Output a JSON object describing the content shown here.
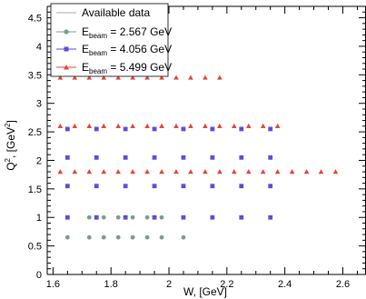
{
  "chart_data": {
    "type": "scatter",
    "xlabel": "W, [GeV]",
    "ylabel_main": "Q",
    "ylabel_sup": "2",
    "ylabel_rest": ", [GeV",
    "ylabel_unit_sup": "2",
    "ylabel_end": "]",
    "xlim": [
      1.58,
      2.68
    ],
    "ylim": [
      0,
      4.7
    ],
    "xticks": [
      "1.6",
      "1.8",
      "2",
      "2.2",
      "2.4",
      "2.6"
    ],
    "xtick_values": [
      1.6,
      1.8,
      2.0,
      2.2,
      2.4,
      2.6
    ],
    "yticks": [
      "0",
      "0.5",
      "1",
      "1.5",
      "2",
      "2.5",
      "3",
      "3.5",
      "4",
      "4.5"
    ],
    "ytick_values": [
      0,
      0.5,
      1,
      1.5,
      2,
      2.5,
      3,
      3.5,
      4,
      4.5
    ],
    "legend": {
      "position": "top-left",
      "available_label": "Available data",
      "entries": [
        {
          "prefix": "E",
          "sub": "beam",
          "suffix": " = 2.567 GeV"
        },
        {
          "prefix": "E",
          "sub": "beam",
          "suffix": " = 4.056 GeV"
        },
        {
          "prefix": "E",
          "sub": "beam",
          "suffix": " = 5.499 GeV"
        }
      ]
    },
    "series": [
      {
        "marker": "circle",
        "color": "#7a9e8c",
        "points": [
          [
            1.65,
            0.65
          ],
          [
            1.725,
            0.65
          ],
          [
            1.775,
            0.65
          ],
          [
            1.825,
            0.65
          ],
          [
            1.875,
            0.65
          ],
          [
            1.925,
            0.65
          ],
          [
            1.975,
            0.65
          ],
          [
            2.05,
            0.65
          ],
          [
            1.725,
            1.0
          ],
          [
            1.75,
            1.0
          ],
          [
            1.775,
            1.0
          ],
          [
            1.825,
            1.0
          ],
          [
            1.85,
            1.0
          ],
          [
            1.875,
            1.0
          ],
          [
            1.925,
            1.0
          ],
          [
            1.95,
            1.0
          ],
          [
            1.975,
            1.0
          ]
        ]
      },
      {
        "marker": "square",
        "color": "#5a4fd8",
        "points": [
          [
            1.65,
            1.0
          ],
          [
            1.75,
            1.0
          ],
          [
            1.85,
            1.0
          ],
          [
            1.95,
            1.0
          ],
          [
            2.05,
            1.0
          ],
          [
            2.15,
            1.0
          ],
          [
            2.25,
            1.0
          ],
          [
            2.35,
            1.0
          ],
          [
            1.65,
            1.55
          ],
          [
            1.75,
            1.55
          ],
          [
            1.85,
            1.55
          ],
          [
            1.95,
            1.55
          ],
          [
            2.05,
            1.55
          ],
          [
            2.15,
            1.55
          ],
          [
            2.25,
            1.55
          ],
          [
            2.35,
            1.55
          ],
          [
            1.65,
            2.05
          ],
          [
            1.75,
            2.05
          ],
          [
            1.85,
            2.05
          ],
          [
            1.95,
            2.05
          ],
          [
            2.05,
            2.05
          ],
          [
            2.15,
            2.05
          ],
          [
            2.25,
            2.05
          ],
          [
            2.35,
            2.05
          ],
          [
            1.65,
            2.55
          ],
          [
            1.75,
            2.55
          ],
          [
            1.85,
            2.55
          ],
          [
            1.95,
            2.55
          ],
          [
            2.05,
            2.55
          ],
          [
            2.15,
            2.55
          ],
          [
            2.25,
            2.55
          ],
          [
            2.35,
            2.55
          ]
        ]
      },
      {
        "marker": "triangle",
        "color": "#e0483a",
        "points": [
          [
            1.625,
            1.8
          ],
          [
            1.675,
            1.8
          ],
          [
            1.725,
            1.8
          ],
          [
            1.775,
            1.8
          ],
          [
            1.825,
            1.8
          ],
          [
            1.875,
            1.8
          ],
          [
            1.925,
            1.8
          ],
          [
            1.975,
            1.8
          ],
          [
            2.025,
            1.8
          ],
          [
            2.075,
            1.8
          ],
          [
            2.125,
            1.8
          ],
          [
            2.175,
            1.8
          ],
          [
            2.225,
            1.8
          ],
          [
            2.275,
            1.8
          ],
          [
            2.325,
            1.8
          ],
          [
            2.375,
            1.8
          ],
          [
            2.425,
            1.8
          ],
          [
            2.475,
            1.8
          ],
          [
            2.525,
            1.8
          ],
          [
            2.575,
            1.8
          ],
          [
            1.625,
            2.6
          ],
          [
            1.675,
            2.6
          ],
          [
            1.725,
            2.6
          ],
          [
            1.775,
            2.6
          ],
          [
            1.825,
            2.6
          ],
          [
            1.875,
            2.6
          ],
          [
            1.925,
            2.6
          ],
          [
            1.975,
            2.6
          ],
          [
            2.025,
            2.6
          ],
          [
            2.075,
            2.6
          ],
          [
            2.125,
            2.6
          ],
          [
            2.175,
            2.6
          ],
          [
            2.225,
            2.6
          ],
          [
            2.275,
            2.6
          ],
          [
            2.325,
            2.6
          ],
          [
            2.375,
            2.6
          ],
          [
            1.625,
            3.45
          ],
          [
            1.675,
            3.45
          ],
          [
            1.725,
            3.45
          ],
          [
            1.775,
            3.45
          ],
          [
            1.825,
            3.45
          ],
          [
            1.875,
            3.45
          ],
          [
            1.925,
            3.45
          ],
          [
            1.975,
            3.45
          ],
          [
            2.025,
            3.45
          ],
          [
            2.075,
            3.45
          ],
          [
            2.125,
            3.45
          ],
          [
            2.175,
            3.45
          ]
        ]
      }
    ]
  }
}
